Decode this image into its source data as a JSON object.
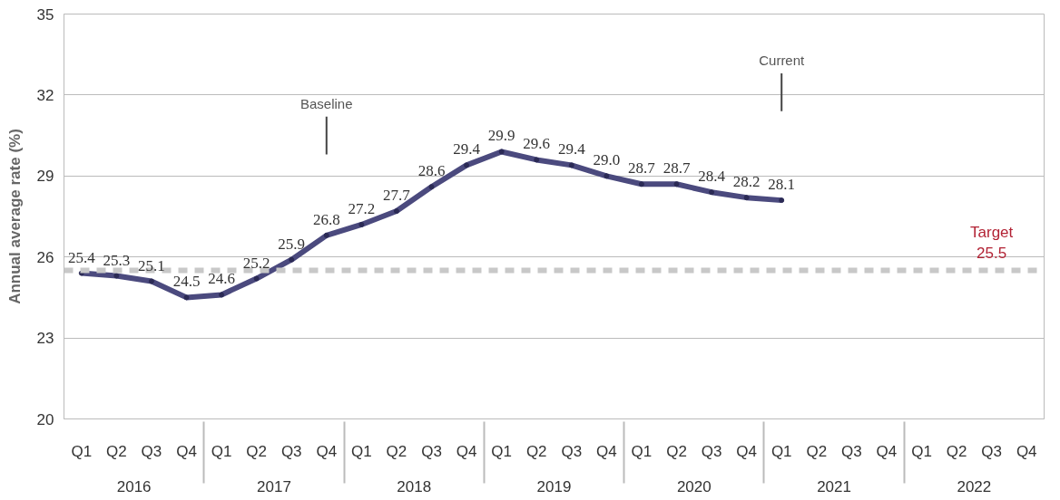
{
  "chart_data": {
    "type": "line",
    "ylabel": "Annual average rate (%)",
    "categories": [
      "Q1",
      "Q2",
      "Q3",
      "Q4",
      "Q1",
      "Q2",
      "Q3",
      "Q4",
      "Q1",
      "Q2",
      "Q3",
      "Q4",
      "Q1",
      "Q2",
      "Q3",
      "Q4",
      "Q1",
      "Q2",
      "Q3",
      "Q4",
      "Q1",
      "Q2",
      "Q3",
      "Q4",
      "Q1",
      "Q2",
      "Q3",
      "Q4"
    ],
    "ylim": [
      20,
      35
    ],
    "yticks": [
      20,
      23,
      26,
      29,
      32,
      35
    ],
    "grid": "y",
    "marker": "circle",
    "line_style": "solid",
    "series": [
      {
        "color": "#4b4a7e",
        "values": [
          25.4,
          25.3,
          25.1,
          24.5,
          24.6,
          25.2,
          25.9,
          26.8,
          27.2,
          27.7,
          28.6,
          29.4,
          29.9,
          29.6,
          29.4,
          29.0,
          28.7,
          28.7,
          28.4,
          28.2,
          28.1,
          null,
          null,
          null,
          null,
          null,
          null,
          null
        ],
        "value_labels": [
          "25.4",
          "25.3",
          "25.1",
          "24.5",
          "24.6",
          "25.2",
          "25.9",
          "26.8",
          "27.2",
          "27.7",
          "28.6",
          "29.4",
          "29.9",
          "29.6",
          "29.4",
          "29.0",
          "28.7",
          "28.7",
          "28.4",
          "28.2",
          "28.1",
          null,
          null,
          null,
          null,
          null,
          null,
          null
        ]
      }
    ],
    "ref_lines": [
      {
        "axis": "y",
        "value": 25.5,
        "label": "Target\n25.5",
        "color": "#c8c8c8",
        "line_style": "dashed"
      }
    ],
    "annotations": [
      "Baseline",
      "Current",
      "2016",
      "2017",
      "2018",
      "2019",
      "2020",
      "2021",
      "2022"
    ]
  }
}
